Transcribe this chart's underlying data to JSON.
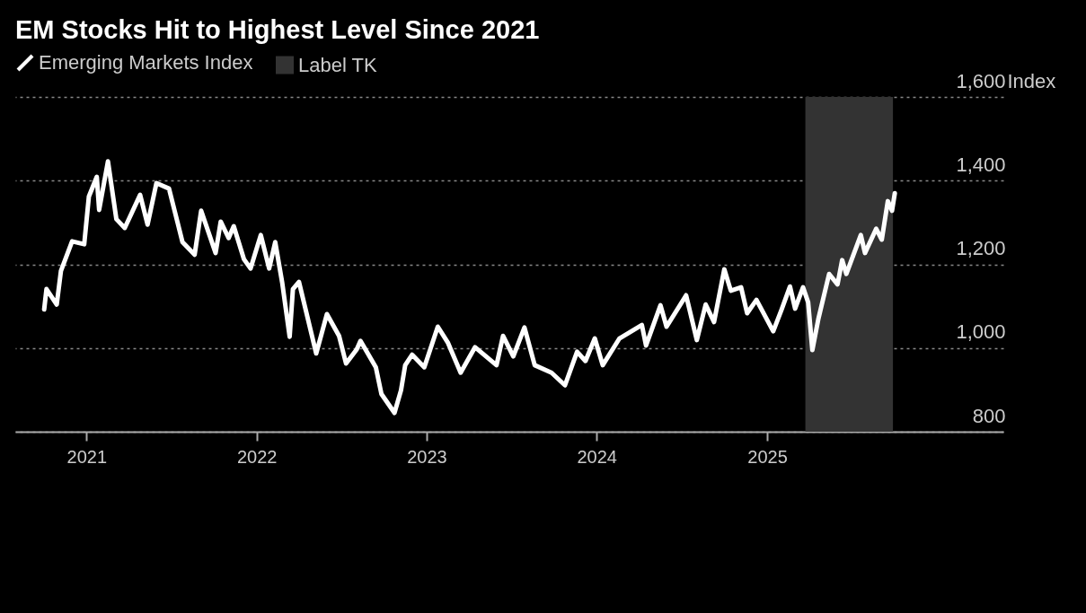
{
  "chart_data": {
    "type": "line",
    "title": "EM Stocks Hit to Highest Level Since 2021",
    "ylabel": "Index",
    "x": [
      "2020-10-02",
      "2020-10-07",
      "2020-10-29",
      "2020-11-07",
      "2020-12-01",
      "2020-12-27",
      "2021-01-06",
      "2021-01-23",
      "2021-01-28",
      "2021-02-16",
      "2021-03-06",
      "2021-03-24",
      "2021-04-26",
      "2021-05-12",
      "2021-05-31",
      "2021-06-27",
      "2021-07-26",
      "2021-08-21",
      "2021-09-04",
      "2021-10-05",
      "2021-10-16",
      "2021-11-02",
      "2021-11-13",
      "2021-12-05",
      "2021-12-19",
      "2022-01-10",
      "2022-01-28",
      "2022-02-10",
      "2022-02-25",
      "2022-03-13",
      "2022-03-20",
      "2022-04-02",
      "2022-05-09",
      "2022-06-01",
      "2022-06-27",
      "2022-07-12",
      "2022-08-04",
      "2022-08-12",
      "2022-09-14",
      "2022-09-26",
      "2022-10-24",
      "2022-11-07",
      "2022-11-16",
      "2022-12-01",
      "2022-12-27",
      "2023-01-25",
      "2023-02-16",
      "2023-03-15",
      "2023-04-15",
      "2023-05-31",
      "2023-06-14",
      "2023-07-06",
      "2023-07-30",
      "2023-08-21",
      "2023-09-26",
      "2023-10-25",
      "2023-11-20",
      "2023-12-08",
      "2023-12-28",
      "2024-01-14",
      "2024-02-19",
      "2024-04-07",
      "2024-04-16",
      "2024-05-17",
      "2024-05-30",
      "2024-07-11",
      "2024-08-03",
      "2024-08-22",
      "2024-09-09",
      "2024-10-01",
      "2024-10-15",
      "2024-11-06",
      "2024-11-19",
      "2024-12-09",
      "2025-01-14",
      "2025-02-01",
      "2025-02-19",
      "2025-03-02",
      "2025-03-19",
      "2025-03-30",
      "2025-04-08",
      "2025-04-21",
      "2025-05-14",
      "2025-06-01",
      "2025-06-11",
      "2025-06-20",
      "2025-07-21",
      "2025-07-30",
      "2025-08-23",
      "2025-09-04",
      "2025-09-17",
      "2025-09-26",
      "2025-10-02"
    ],
    "series": [
      {
        "name": "Emerging Markets Index",
        "color": "#ffffff",
        "values": [
          1092,
          1141,
          1104,
          1184,
          1255,
          1248,
          1362,
          1409,
          1330,
          1446,
          1308,
          1287,
          1366,
          1295,
          1394,
          1381,
          1253,
          1223,
          1328,
          1227,
          1302,
          1263,
          1291,
          1212,
          1190,
          1270,
          1190,
          1253,
          1156,
          1027,
          1141,
          1158,
          987,
          1081,
          1029,
          963,
          997,
          1017,
          954,
          890,
          845,
          899,
          959,
          984,
          954,
          1051,
          1012,
          941,
          1002,
          959,
          1029,
          980,
          1049,
          959,
          941,
          911,
          991,
          969,
          1023,
          959,
          1023,
          1055,
          1006,
          1102,
          1051,
          1126,
          1019,
          1104,
          1062,
          1188,
          1137,
          1145,
          1083,
          1115,
          1040,
          1092,
          1147,
          1094,
          1145,
          1109,
          995,
          1070,
          1177,
          1152,
          1210,
          1177,
          1270,
          1227,
          1285,
          1259,
          1351,
          1328,
          1370
        ]
      }
    ],
    "bands": [
      {
        "axis": "x",
        "from": "2025-03-24",
        "to": "2025-09-28",
        "label": "Label TK",
        "color": "#333333"
      }
    ],
    "xlim": [
      "2020-08-01",
      "2026-05-23"
    ],
    "xticks": [
      {
        "value": "2021-01-01",
        "label": "2021"
      },
      {
        "value": "2022-01-01",
        "label": "2022"
      },
      {
        "value": "2023-01-01",
        "label": "2023"
      },
      {
        "value": "2024-01-01",
        "label": "2024"
      },
      {
        "value": "2025-01-01",
        "label": "2025"
      }
    ],
    "ylim": [
      800,
      1600
    ],
    "yticks": [
      {
        "value": 800,
        "label": "800"
      },
      {
        "value": 1000,
        "label": "1,000"
      },
      {
        "value": 1200,
        "label": "1,200"
      },
      {
        "value": 1400,
        "label": "1,400"
      },
      {
        "value": 1600,
        "label": "1,600"
      }
    ],
    "grid": "y",
    "legend": "top left",
    "line_style": "solid"
  }
}
